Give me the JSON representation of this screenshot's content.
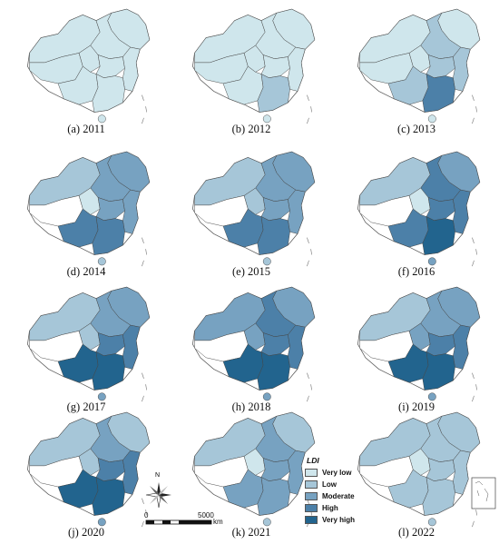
{
  "legend": {
    "title": "LDI",
    "classes": [
      {
        "label": "Very low",
        "color": "#cfe6ec"
      },
      {
        "label": "Low",
        "color": "#a6c6d8"
      },
      {
        "label": "Moderate",
        "color": "#77a2c1"
      },
      {
        "label": "High",
        "color": "#4c80a8"
      },
      {
        "label": "Very high",
        "color": "#22648e"
      }
    ]
  },
  "scale": {
    "zero": "0",
    "max": "5000",
    "unit": "km"
  },
  "compass": {
    "north": "N"
  },
  "panels": [
    {
      "caption": "(a) 2011",
      "levels": {
        "ne": 0,
        "n": 0,
        "nw": 0,
        "tibet": 0,
        "sc": 0,
        "c": 0,
        "e": 0,
        "s": 0,
        "sw": 0,
        "hn": 0
      }
    },
    {
      "caption": "(b) 2012",
      "levels": {
        "ne": 0,
        "n": 0,
        "nw": 0,
        "tibet": 0,
        "sc": 0,
        "c": 0,
        "e": 0,
        "s": 1,
        "sw": 0,
        "hn": 0
      }
    },
    {
      "caption": "(c) 2013",
      "levels": {
        "ne": 0,
        "n": 1,
        "nw": 0,
        "tibet": 0,
        "sc": 0,
        "c": 1,
        "e": 1,
        "s": 3,
        "sw": 1,
        "hn": 0
      }
    },
    {
      "caption": "(d) 2014",
      "levels": {
        "ne": 2,
        "n": 2,
        "nw": 1,
        "tibet": 0,
        "sc": 0,
        "c": 2,
        "e": 2,
        "s": 3,
        "sw": 3,
        "hn": 1
      }
    },
    {
      "caption": "(e) 2015",
      "levels": {
        "ne": 2,
        "n": 2,
        "nw": 1,
        "tibet": 0,
        "sc": 1,
        "c": 2,
        "e": 2,
        "s": 3,
        "sw": 3,
        "hn": 1
      }
    },
    {
      "caption": "(f) 2016",
      "levels": {
        "ne": 2,
        "n": 3,
        "nw": 1,
        "tibet": 0,
        "sc": 0,
        "c": 3,
        "e": 3,
        "s": 4,
        "sw": 3,
        "hn": 2
      }
    },
    {
      "caption": "(g) 2017",
      "levels": {
        "ne": 2,
        "n": 2,
        "nw": 1,
        "tibet": 0,
        "sc": 1,
        "c": 3,
        "e": 3,
        "s": 4,
        "sw": 4,
        "hn": 2
      }
    },
    {
      "caption": "(h) 2018",
      "levels": {
        "ne": 2,
        "n": 3,
        "nw": 2,
        "tibet": 0,
        "sc": 2,
        "c": 3,
        "e": 3,
        "s": 4,
        "sw": 4,
        "hn": 2
      }
    },
    {
      "caption": "(i) 2019",
      "levels": {
        "ne": 2,
        "n": 2,
        "nw": 1,
        "tibet": 0,
        "sc": 2,
        "c": 3,
        "e": 3,
        "s": 4,
        "sw": 4,
        "hn": 2
      }
    },
    {
      "caption": "(j) 2020",
      "levels": {
        "ne": 1,
        "n": 2,
        "nw": 1,
        "tibet": 0,
        "sc": 1,
        "c": 3,
        "e": 3,
        "s": 4,
        "sw": 4,
        "hn": 2
      }
    },
    {
      "caption": "(k) 2021",
      "levels": {
        "ne": 1,
        "n": 2,
        "nw": 1,
        "tibet": 0,
        "sc": 0,
        "c": 2,
        "e": 2,
        "s": 2,
        "sw": 2,
        "hn": 1
      }
    },
    {
      "caption": "(l) 2022",
      "levels": {
        "ne": 1,
        "n": 1,
        "nw": 1,
        "tibet": 0,
        "sc": 0,
        "c": 1,
        "e": 1,
        "s": 1,
        "sw": 1,
        "hn": 1
      }
    }
  ]
}
